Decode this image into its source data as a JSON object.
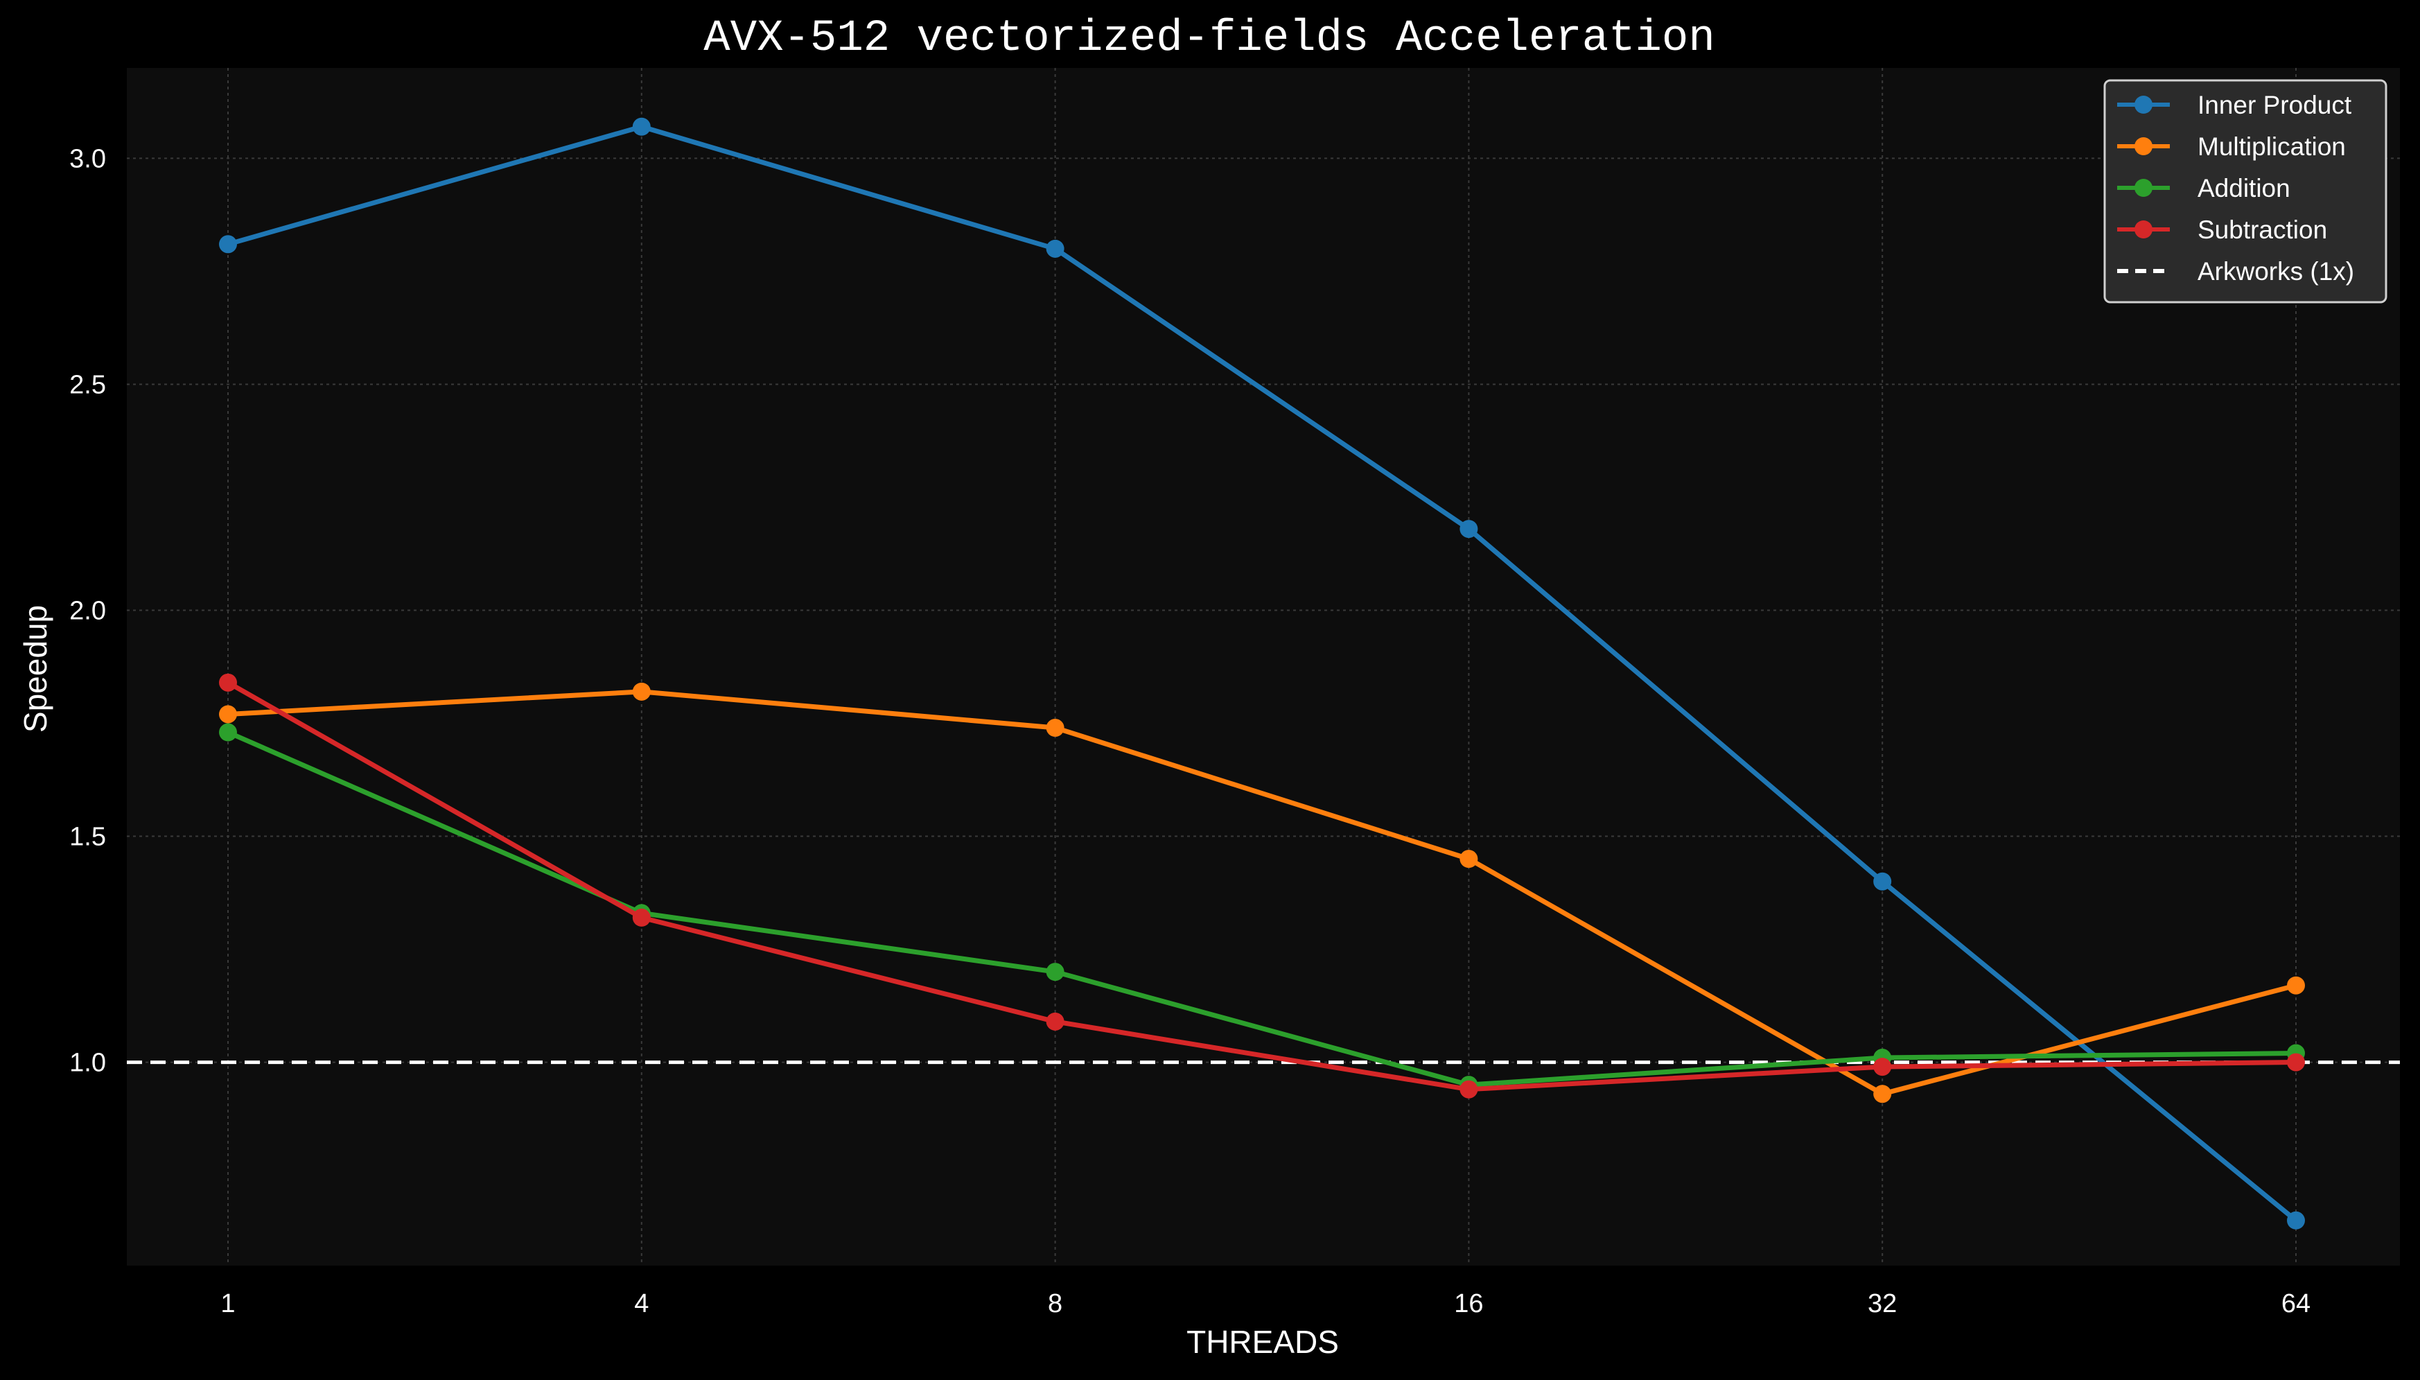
{
  "chart_data": {
    "type": "line",
    "title": "AVX-512 vectorized-fields Acceleration",
    "xlabel": "THREADS",
    "ylabel": "Speedup",
    "x_scale": "log2",
    "categories": [
      "1",
      "4",
      "8",
      "16",
      "32",
      "64"
    ],
    "x": [
      1,
      4,
      8,
      16,
      32,
      64
    ],
    "ylim": [
      0.55,
      3.2
    ],
    "yticks": [
      1.0,
      1.5,
      2.0,
      2.5,
      3.0
    ],
    "ytick_labels": [
      "1.0",
      "1.5",
      "2.0",
      "2.5",
      "3.0"
    ],
    "grid": true,
    "legend_position": "top-right",
    "series": [
      {
        "name": "Inner Product",
        "color": "#1f77b4",
        "values": [
          2.81,
          3.07,
          2.8,
          2.18,
          1.4,
          0.65
        ]
      },
      {
        "name": "Multiplication",
        "color": "#ff7f0e",
        "values": [
          1.77,
          1.82,
          1.74,
          1.45,
          0.93,
          1.17
        ]
      },
      {
        "name": "Addition",
        "color": "#2ca02c",
        "values": [
          1.73,
          1.33,
          1.2,
          0.95,
          1.01,
          1.02
        ]
      },
      {
        "name": "Subtraction",
        "color": "#d62728",
        "values": [
          1.84,
          1.32,
          1.09,
          0.94,
          0.99,
          1.0
        ]
      }
    ],
    "reference_line": {
      "name": "Arkworks (1x)",
      "value": 1.0,
      "color": "#ffffff",
      "style": "dashed"
    }
  },
  "colors": {
    "background": "#000000",
    "plot_background": "#0d0d0d",
    "grid": "#3a3a3a",
    "legend_background": "#2b2b2b",
    "legend_border": "#d0d0d0"
  }
}
